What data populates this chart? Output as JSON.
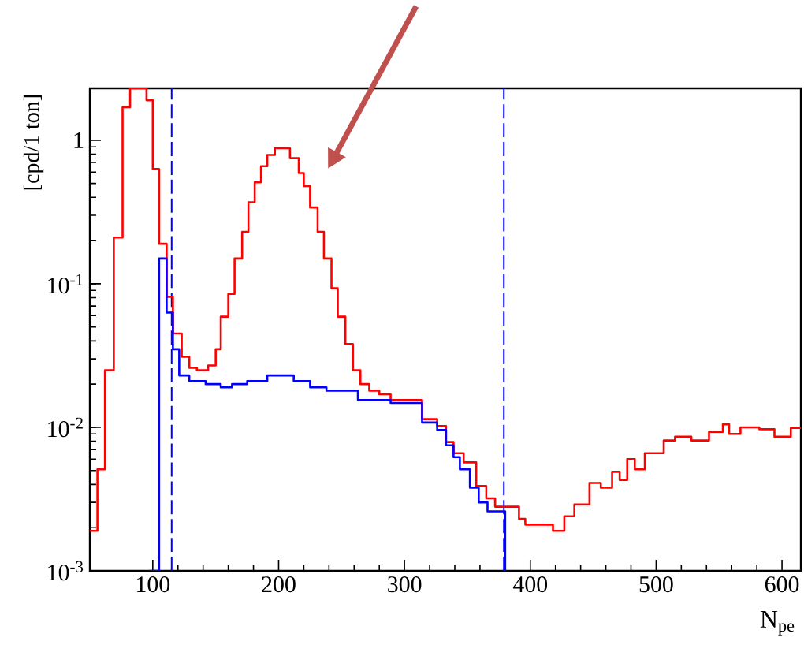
{
  "chart_data": {
    "type": "step",
    "xlabel": "N$_{pe}$",
    "ylabel": "[cpd/1 ton]",
    "log": "y",
    "xlim": [
      50,
      615
    ],
    "ylim": [
      0.001,
      2.3
    ],
    "xticks": [
      100,
      200,
      300,
      400,
      500,
      600
    ],
    "yticks": [
      {
        "value": 0.001,
        "label": "10$^{-3}$"
      },
      {
        "value": 0.01,
        "label": "10$^{-2}$"
      },
      {
        "value": 0.1,
        "label": "10$^{-1}$"
      },
      1
    ],
    "grid": false,
    "series": [
      {
        "color": "#ff0000",
        "x": [
          50,
          56,
          62,
          69,
          76,
          82,
          95,
          100,
          105,
          111,
          116,
          123,
          129,
          135,
          144,
          150,
          154,
          160,
          165,
          171,
          176,
          181,
          186,
          191,
          197,
          209,
          216,
          220,
          225,
          231,
          236,
          242,
          247,
          253,
          259,
          265,
          272,
          280,
          289,
          314,
          326,
          333,
          339,
          347,
          357,
          365,
          372,
          391,
          396,
          418,
          427,
          435,
          447,
          456,
          465,
          471,
          477,
          483,
          491,
          506,
          515,
          528,
          542,
          553,
          558,
          567,
          582,
          594,
          607,
          615
        ],
        "values": [
          0.0019,
          0.0051,
          0.025,
          0.21,
          1.7,
          2.3,
          1.9,
          0.63,
          0.19,
          0.081,
          0.045,
          0.031,
          0.026,
          0.025,
          0.027,
          0.035,
          0.059,
          0.085,
          0.15,
          0.23,
          0.37,
          0.51,
          0.66,
          0.79,
          0.88,
          0.75,
          0.59,
          0.48,
          0.34,
          0.23,
          0.15,
          0.093,
          0.059,
          0.038,
          0.025,
          0.02,
          0.018,
          0.017,
          0.0155,
          0.0114,
          0.0102,
          0.0079,
          0.0066,
          0.0057,
          0.0039,
          0.0032,
          0.0028,
          0.0023,
          0.0021,
          0.0019,
          0.0024,
          0.0029,
          0.0041,
          0.0038,
          0.0049,
          0.0043,
          0.006,
          0.0051,
          0.0066,
          0.0081,
          0.0086,
          0.0081,
          0.0093,
          0.0105,
          0.009,
          0.01,
          0.0097,
          0.0086,
          0.0099,
          0.0099
        ]
      },
      {
        "color": "#0000ff",
        "x": [
          98,
          105,
          111,
          116,
          121,
          129,
          142,
          154,
          163,
          175,
          191,
          212,
          225,
          238,
          263,
          289,
          314,
          326,
          333,
          339,
          344,
          352,
          359,
          366,
          380
        ],
        "values": [
          0.001,
          0.15,
          0.063,
          0.035,
          0.023,
          0.021,
          0.02,
          0.019,
          0.02,
          0.021,
          0.023,
          0.021,
          0.019,
          0.018,
          0.0155,
          0.0148,
          0.0108,
          0.0096,
          0.0075,
          0.0062,
          0.0051,
          0.0038,
          0.003,
          0.0026,
          0.001
        ]
      }
    ],
    "ref_lines": [
      {
        "axis": "x",
        "value": 115,
        "color": "#0000ff",
        "line_style": "dashed"
      },
      {
        "axis": "x",
        "value": 379,
        "color": "#0000ff",
        "line_style": "dashed"
      }
    ]
  }
}
